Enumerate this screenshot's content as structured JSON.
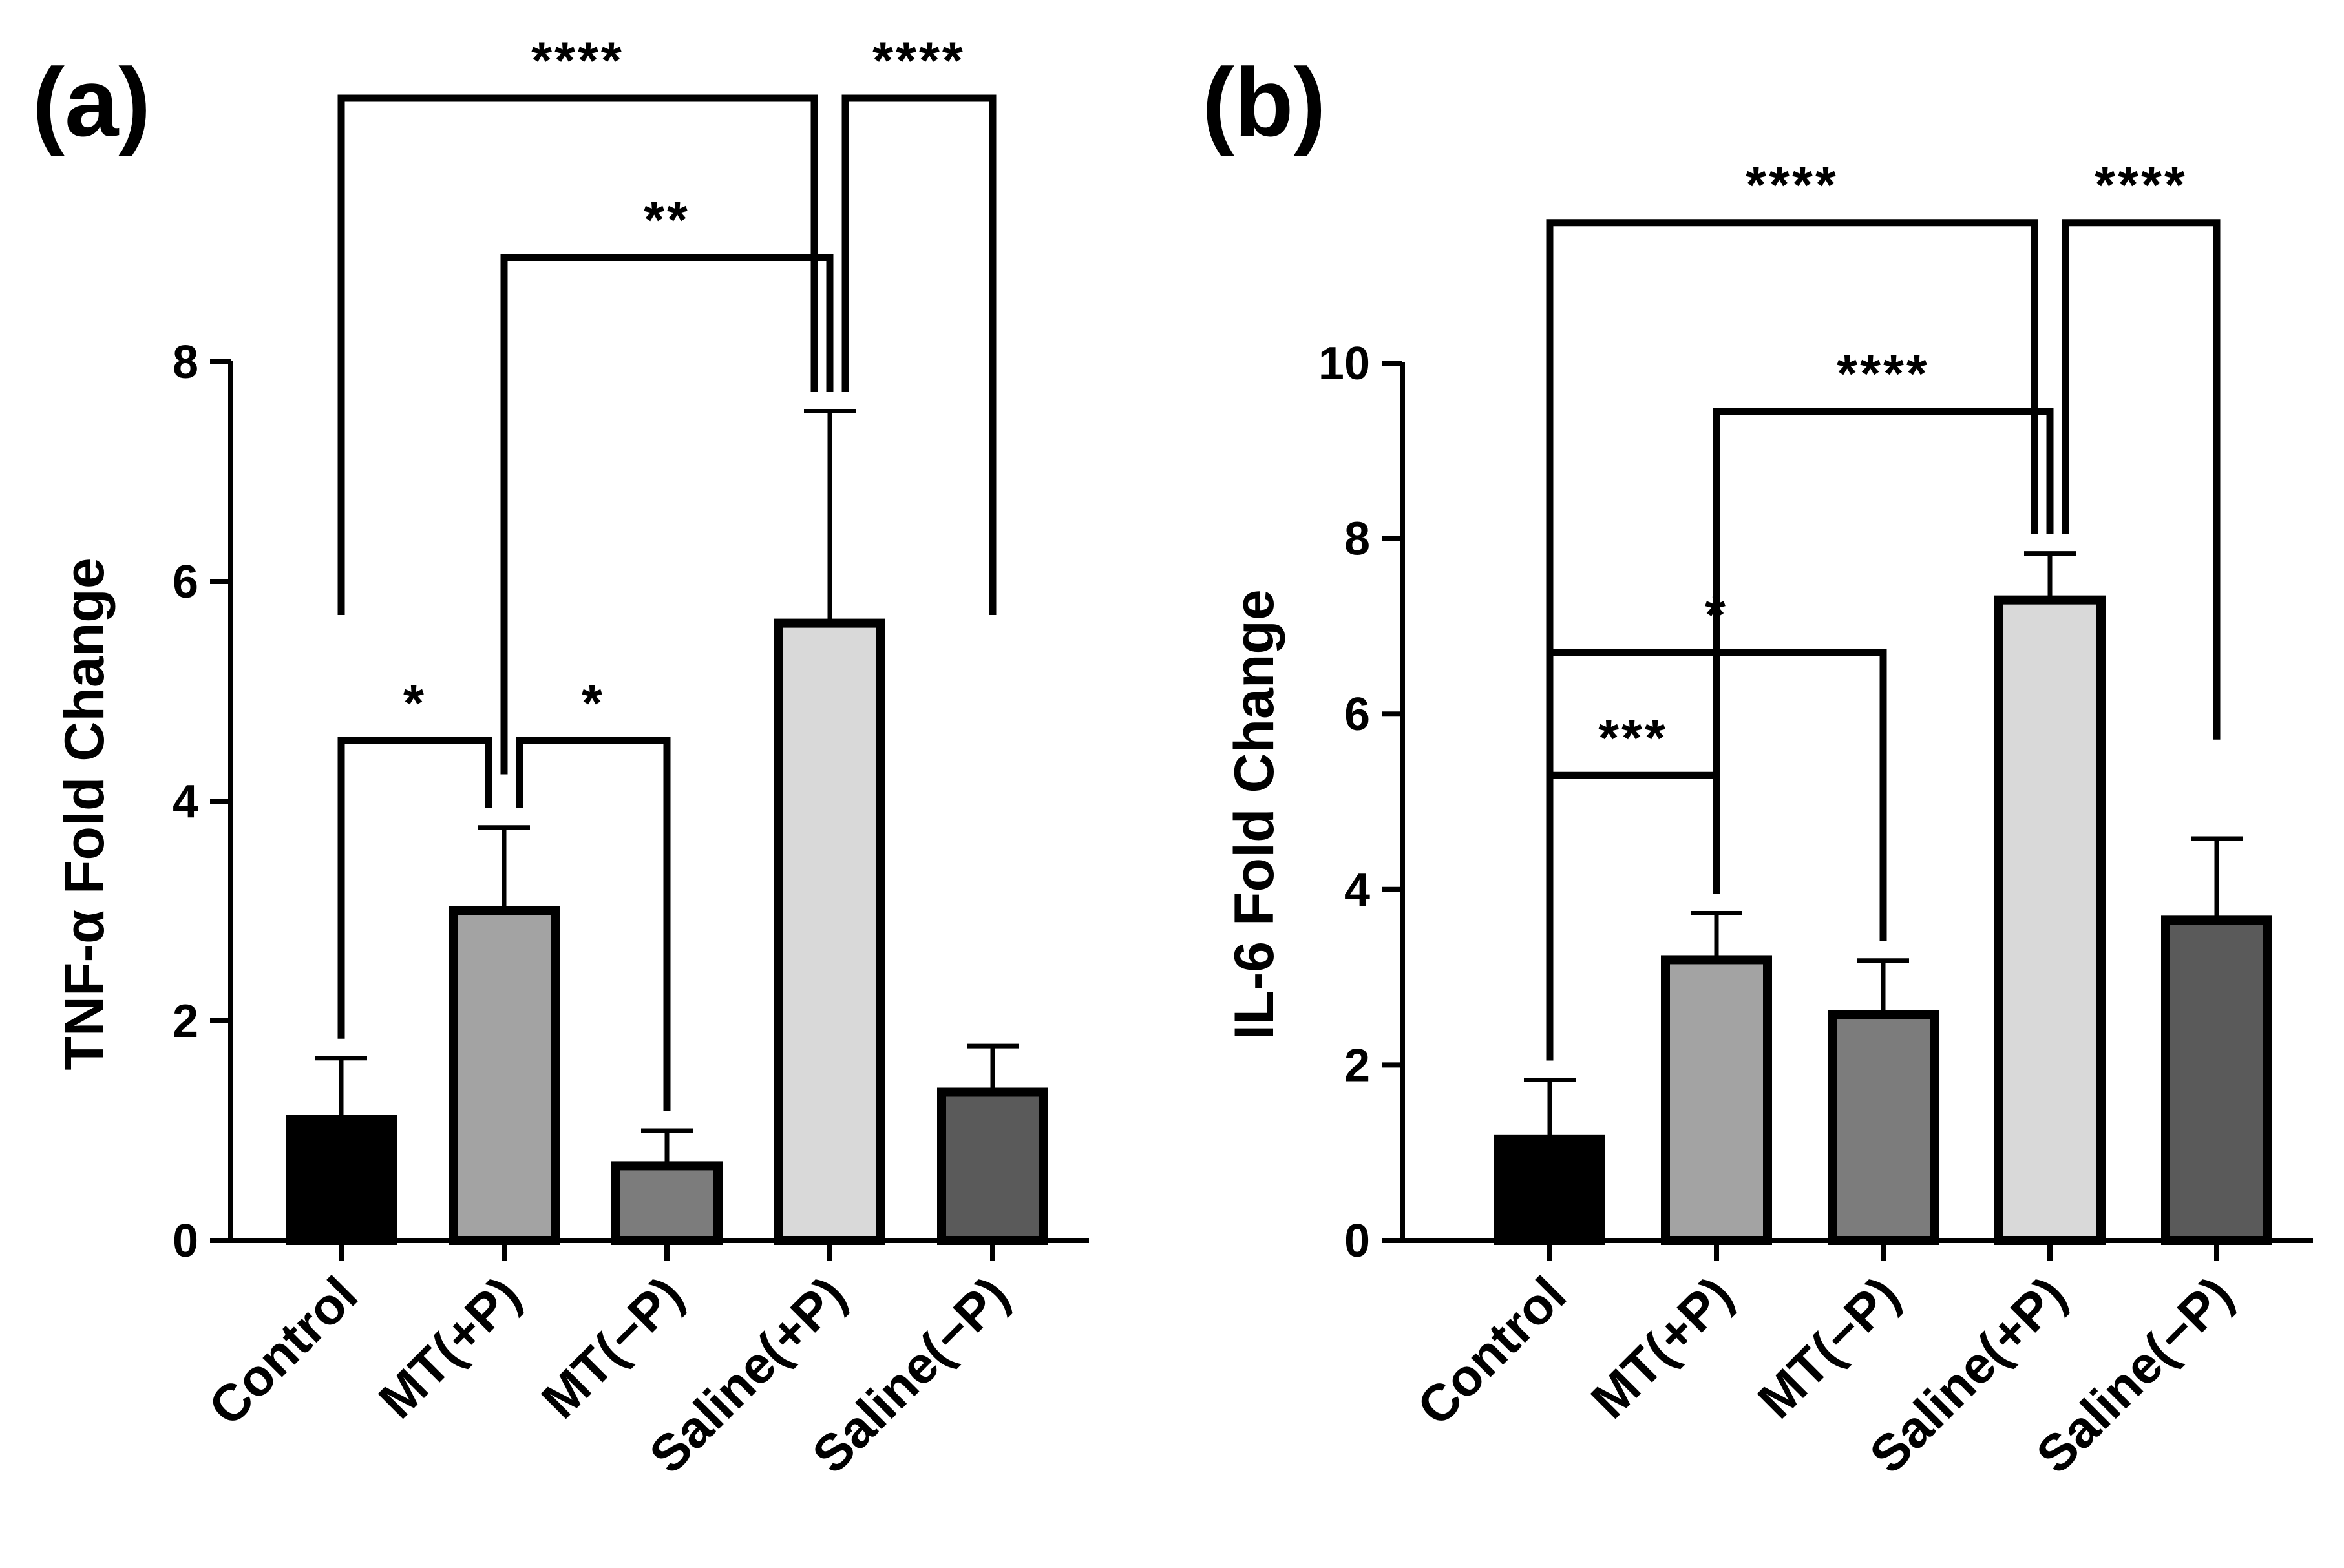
{
  "chart_data": [
    {
      "type": "bar",
      "panel_label": "(a)",
      "title": "",
      "xlabel": "",
      "ylabel": "TNF-α Fold Change",
      "ylim": [
        0,
        8
      ],
      "yticks": [
        0,
        2,
        4,
        6,
        8
      ],
      "categories": [
        "Control",
        "MT(+P)",
        "MT(−P)",
        "Saline(+P)",
        "Saline(−P)"
      ],
      "values": [
        1.1,
        3.0,
        0.68,
        5.62,
        1.35
      ],
      "errors": [
        0.56,
        0.76,
        0.32,
        1.93,
        0.42
      ],
      "bar_colors": [
        "#000000",
        "#a3a3a3",
        "#7c7c7c",
        "#d9d9d9",
        "#5a5a5a"
      ],
      "significance": [
        {
          "from": 0,
          "to": 1,
          "label": "*",
          "level": 4.55
        },
        {
          "from": 1,
          "to": 2,
          "label": "*",
          "level": 4.55
        },
        {
          "from": 1,
          "to": 3,
          "label": "**",
          "level": 8.95
        },
        {
          "from": 0,
          "to": 3,
          "label": "****",
          "level": 10.4
        },
        {
          "from": 3,
          "to": 4,
          "label": "****",
          "level": 10.4
        }
      ]
    },
    {
      "type": "bar",
      "panel_label": "(b)",
      "title": "",
      "xlabel": "",
      "ylabel": "IL-6 Fold Change",
      "ylim": [
        0,
        10
      ],
      "yticks": [
        0,
        2,
        4,
        6,
        8,
        10
      ],
      "categories": [
        "Control",
        "MT(+P)",
        "MT(−P)",
        "Saline(+P)",
        "Saline(−P)"
      ],
      "values": [
        1.15,
        3.2,
        2.57,
        7.3,
        3.65
      ],
      "errors": [
        0.68,
        0.53,
        0.62,
        0.53,
        0.93
      ],
      "bar_colors": [
        "#000000",
        "#a3a3a3",
        "#7c7c7c",
        "#d9d9d9",
        "#5a5a5a"
      ],
      "significance": [
        {
          "from": 0,
          "to": 1,
          "label": "***",
          "level": 5.3
        },
        {
          "from": 0,
          "to": 2,
          "label": "*",
          "level": 6.7
        },
        {
          "from": 1,
          "to": 3,
          "label": "****",
          "level": 9.45
        },
        {
          "from": 0,
          "to": 3,
          "label": "****",
          "level": 11.6
        },
        {
          "from": 3,
          "to": 4,
          "label": "****",
          "level": 11.6
        }
      ]
    }
  ]
}
